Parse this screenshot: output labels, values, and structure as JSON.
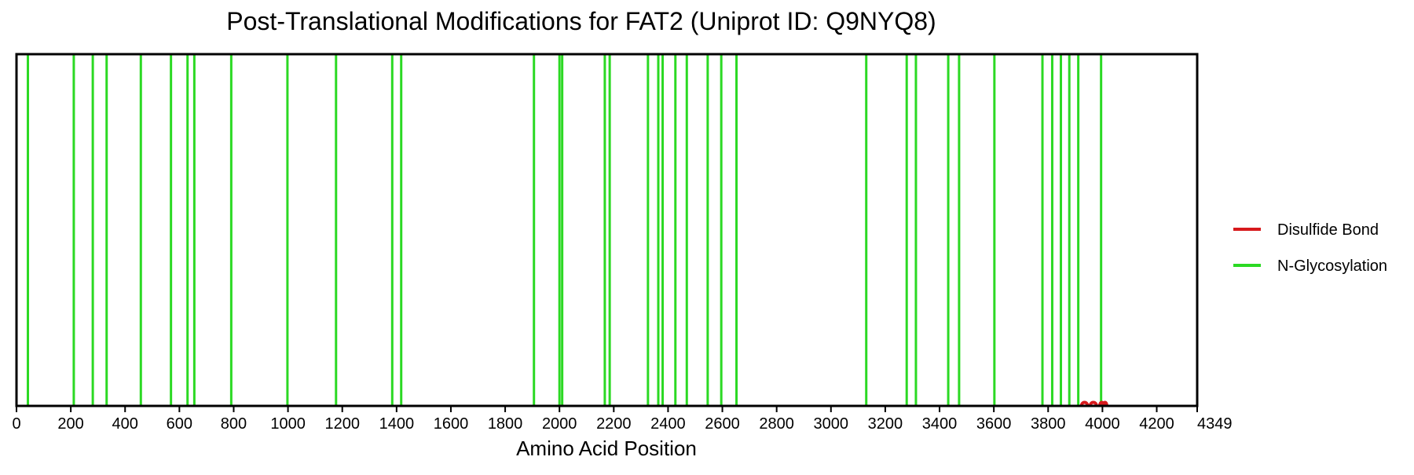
{
  "chart_data": {
    "type": "line",
    "title": "Post-Translational Modifications for FAT2 (Uniprot ID: Q9NYQ8)",
    "xlabel": "Amino Acid Position",
    "ylabel": "",
    "xlim": [
      0,
      4349
    ],
    "x_ticks": [
      0,
      200,
      400,
      600,
      800,
      1000,
      1200,
      1400,
      1600,
      1800,
      2000,
      2200,
      2400,
      2600,
      2800,
      3000,
      3200,
      3400,
      3600,
      3800,
      4000,
      4200,
      4349
    ],
    "grid": false,
    "legend_position": "right",
    "colors": {
      "disulfide": "#d7191c",
      "glycosylation": "#2bd923"
    },
    "series": [
      {
        "name": "Disulfide Bond",
        "kind": "arcs",
        "bonds": [
          [
            3923,
            3945
          ],
          [
            3955,
            3978
          ],
          [
            3990,
            4005
          ],
          [
            4003,
            4016
          ]
        ]
      },
      {
        "name": "N-Glycosylation",
        "kind": "vlines",
        "positions": [
          42,
          211,
          281,
          332,
          458,
          569,
          630,
          655,
          791,
          998,
          1177,
          1384,
          1417,
          1906,
          2000,
          2010,
          2167,
          2185,
          2326,
          2364,
          2380,
          2427,
          2469,
          2546,
          2596,
          2652,
          3130,
          3279,
          3313,
          3432,
          3472,
          3602,
          3779,
          3815,
          3847,
          3878,
          3911,
          3995
        ]
      }
    ]
  }
}
